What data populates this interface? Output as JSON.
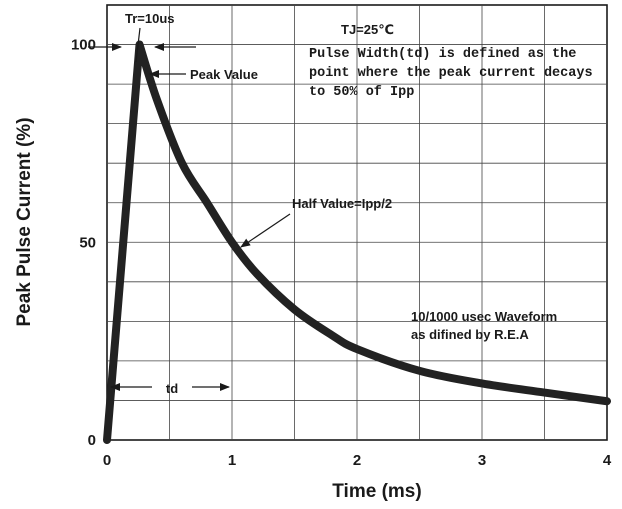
{
  "chart_data": {
    "type": "line",
    "title": "",
    "xlabel": "Time (ms)",
    "ylabel": "Peak Pulse Current (%)",
    "xlim": [
      0,
      4
    ],
    "ylim": [
      0,
      110
    ],
    "x_ticks": [
      "0",
      "1",
      "2",
      "3",
      "4"
    ],
    "y_ticks": [
      "0",
      "50",
      "100"
    ],
    "grid": true,
    "series": [
      {
        "x": [
          0,
          0.26,
          0.4,
          0.6,
          0.8,
          1.0,
          1.2,
          1.5,
          1.8,
          2.0,
          2.5,
          3.0,
          3.5,
          4.0
        ],
        "values": [
          0,
          100,
          86,
          70,
          60,
          50,
          42,
          33,
          26.5,
          23,
          17.5,
          14.3,
          12,
          9.8
        ]
      }
    ],
    "annotations": {
      "tr": "Tr=10us",
      "peak": "Peak Value",
      "half": "Half Value=Ipp/2",
      "td": "td",
      "tj": "TJ=25℃",
      "pulse_line1": "Pulse Width(td) is defined as the",
      "pulse_line2": "point where the peak current decays",
      "pulse_line3": "to 50% of Ipp",
      "waveform_line1": "10/1000 usec Waveform",
      "waveform_line2": "as difined by R.E.A"
    }
  }
}
